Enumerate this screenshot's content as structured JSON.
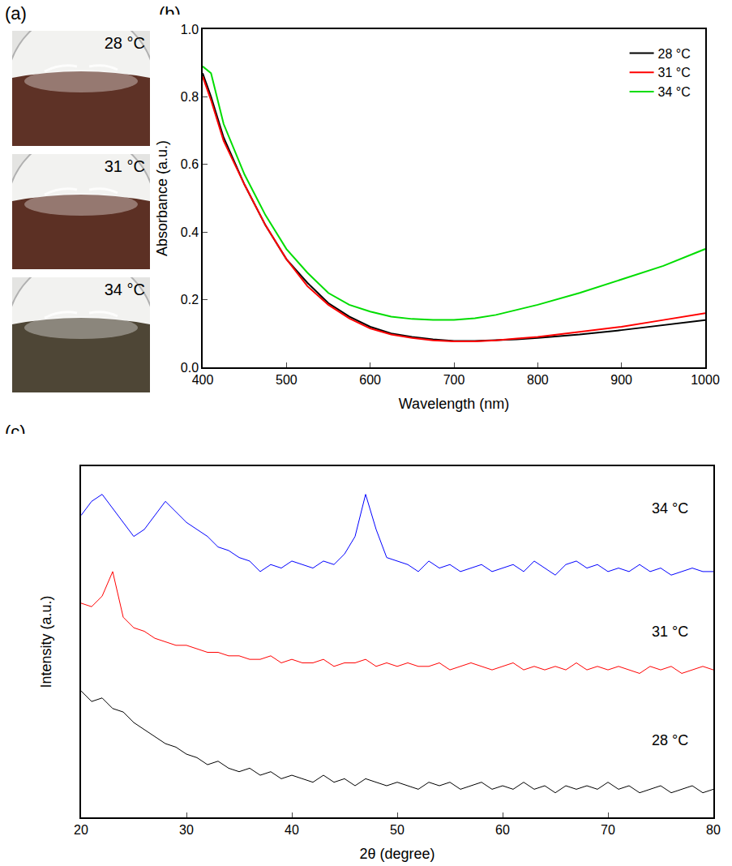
{
  "photos": {
    "panel": "(a)",
    "items": [
      {
        "label": "28 °C",
        "color": "#5e3226"
      },
      {
        "label": "31 °C",
        "color": "#5c3024"
      },
      {
        "label": "34 °C",
        "color": "#4e4636"
      }
    ]
  },
  "chart_data": [
    {
      "panel": "(b)",
      "type": "line",
      "x_label": "Wavelength (nm)",
      "y_label": "Absorbance (a.u.)",
      "x": [
        400,
        410,
        425,
        450,
        475,
        500,
        525,
        550,
        575,
        600,
        625,
        650,
        675,
        700,
        725,
        750,
        775,
        800,
        850,
        900,
        950,
        1000
      ],
      "series": [
        {
          "name": "28 °C",
          "color": "#000000",
          "values": [
            0.87,
            0.8,
            0.68,
            0.54,
            0.42,
            0.32,
            0.25,
            0.19,
            0.15,
            0.12,
            0.1,
            0.09,
            0.083,
            0.078,
            0.078,
            0.08,
            0.083,
            0.087,
            0.097,
            0.11,
            0.125,
            0.14
          ]
        },
        {
          "name": "31 °C",
          "color": "#ff0000",
          "values": [
            0.86,
            0.79,
            0.67,
            0.54,
            0.42,
            0.32,
            0.24,
            0.185,
            0.145,
            0.115,
            0.097,
            0.087,
            0.08,
            0.077,
            0.077,
            0.08,
            0.085,
            0.09,
            0.105,
            0.12,
            0.14,
            0.16
          ]
        },
        {
          "name": "34 °C",
          "color": "#00dd00",
          "values": [
            0.89,
            0.87,
            0.72,
            0.57,
            0.45,
            0.35,
            0.28,
            0.22,
            0.185,
            0.165,
            0.15,
            0.143,
            0.14,
            0.14,
            0.145,
            0.155,
            0.17,
            0.185,
            0.22,
            0.26,
            0.3,
            0.35
          ]
        }
      ],
      "xlim": [
        400,
        1000
      ],
      "xticks": [
        400,
        500,
        600,
        700,
        800,
        900,
        1000
      ],
      "ylim": [
        0,
        1
      ],
      "yticks": [
        {
          "value": 0,
          "label": "0.0"
        },
        0.2,
        0.4,
        0.6,
        0.8,
        {
          "value": 1,
          "label": "1.0"
        }
      ],
      "grid": false,
      "legend": "top right"
    },
    {
      "panel": "(c)",
      "type": "line",
      "x_label": "2θ (degree)",
      "y_label": "Intensity (a.u.)",
      "x": [
        20,
        21,
        22,
        23,
        24,
        25,
        26,
        27,
        28,
        29,
        30,
        31,
        32,
        33,
        34,
        35,
        36,
        37,
        38,
        39,
        40,
        41,
        42,
        43,
        44,
        45,
        46,
        47,
        48,
        49,
        50,
        51,
        52,
        53,
        54,
        55,
        56,
        57,
        58,
        59,
        60,
        61,
        62,
        63,
        64,
        65,
        66,
        67,
        68,
        69,
        70,
        71,
        72,
        73,
        74,
        75,
        76,
        77,
        78,
        79,
        80
      ],
      "series": [
        {
          "name": "28 °C",
          "color": "#000000",
          "values": [
            36,
            33,
            34,
            31,
            30,
            27,
            25,
            23,
            21,
            20,
            18,
            17,
            15,
            16,
            14,
            13,
            14,
            12,
            13,
            11,
            12,
            11,
            10,
            12,
            10,
            11,
            9,
            11,
            10,
            9,
            10,
            9,
            8,
            10,
            9,
            10,
            8,
            9,
            10,
            8,
            9,
            8,
            10,
            8,
            9,
            7,
            9,
            8,
            9,
            8,
            10,
            8,
            9,
            7,
            8,
            9,
            7,
            8,
            9,
            7,
            8
          ]
        },
        {
          "name": "31 °C",
          "color": "#ff0000",
          "values": [
            61,
            60,
            63,
            70,
            57,
            54,
            53,
            51,
            50,
            49,
            49,
            48,
            47,
            47,
            46,
            46,
            45,
            45,
            46,
            44,
            45,
            44,
            44,
            45,
            43,
            44,
            44,
            45,
            43,
            44,
            43,
            44,
            43,
            43,
            44,
            42,
            43,
            44,
            43,
            42,
            43,
            44,
            42,
            43,
            42,
            43,
            42,
            44,
            42,
            43,
            42,
            43,
            42,
            41,
            43,
            42,
            43,
            41,
            42,
            43,
            42
          ]
        },
        {
          "name": "34 °C",
          "color": "#0000ff",
          "values": [
            86,
            90,
            92,
            88,
            84,
            80,
            82,
            86,
            90,
            87,
            84,
            82,
            80,
            77,
            76,
            74,
            73,
            70,
            72,
            71,
            73,
            72,
            71,
            73,
            72,
            75,
            80,
            92,
            82,
            74,
            73,
            72,
            70,
            73,
            71,
            72,
            70,
            71,
            72,
            70,
            71,
            72,
            70,
            73,
            71,
            69,
            72,
            73,
            71,
            72,
            70,
            71,
            70,
            72,
            70,
            71,
            69,
            70,
            71,
            70,
            70
          ]
        }
      ],
      "annotations": [
        {
          "text": "34 °C",
          "x": 74,
          "y": 88
        },
        {
          "text": "31 °C",
          "x": 74,
          "y": 53
        },
        {
          "text": "28 °C",
          "x": 74,
          "y": 22
        }
      ],
      "xlim": [
        20,
        80
      ],
      "xticks": [
        20,
        30,
        40,
        50,
        60,
        70,
        80
      ],
      "ylim": [
        0,
        100
      ],
      "tick_labels": "x",
      "grid": false
    }
  ]
}
